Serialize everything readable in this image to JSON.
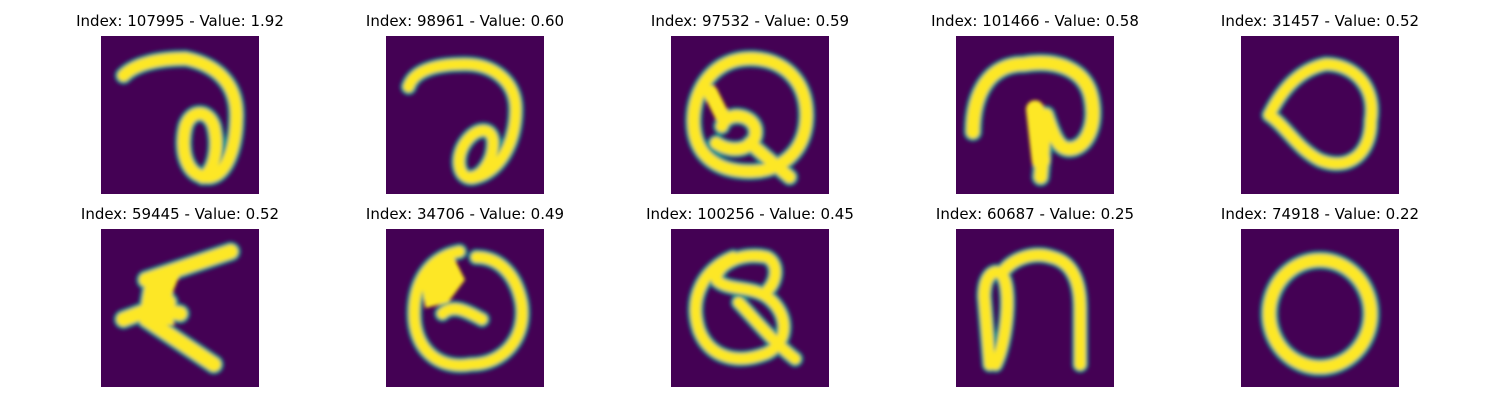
{
  "figure": {
    "colormap": "viridis",
    "background_color": "#440154",
    "stroke_color": "#fde725",
    "edge_color": "#21918c",
    "grid": "2 rows x 5 columns",
    "panels": [
      {
        "title": "Index: 107995 - Value: 1.92",
        "glyph": "handwritten-a-loop"
      },
      {
        "title": "Index: 98961 - Value: 0.60",
        "glyph": "handwritten-a-loop"
      },
      {
        "title": "Index: 97532 - Value: 0.59",
        "glyph": "handwritten-Q"
      },
      {
        "title": "Index: 101466 - Value: 0.58",
        "glyph": "handwritten-arch-with-stem"
      },
      {
        "title": "Index: 31457 - Value: 0.52",
        "glyph": "handwritten-O-pointed"
      },
      {
        "title": "Index: 59445 - Value: 0.52",
        "glyph": "handwritten-A-blob"
      },
      {
        "title": "Index: 34706 - Value: 0.49",
        "glyph": "handwritten-O-filled-top"
      },
      {
        "title": "Index: 100256 - Value: 0.45",
        "glyph": "handwritten-Q"
      },
      {
        "title": "Index: 60687 - Value: 0.25",
        "glyph": "handwritten-n"
      },
      {
        "title": "Index: 74918 - Value: 0.22",
        "glyph": "handwritten-O"
      }
    ]
  }
}
